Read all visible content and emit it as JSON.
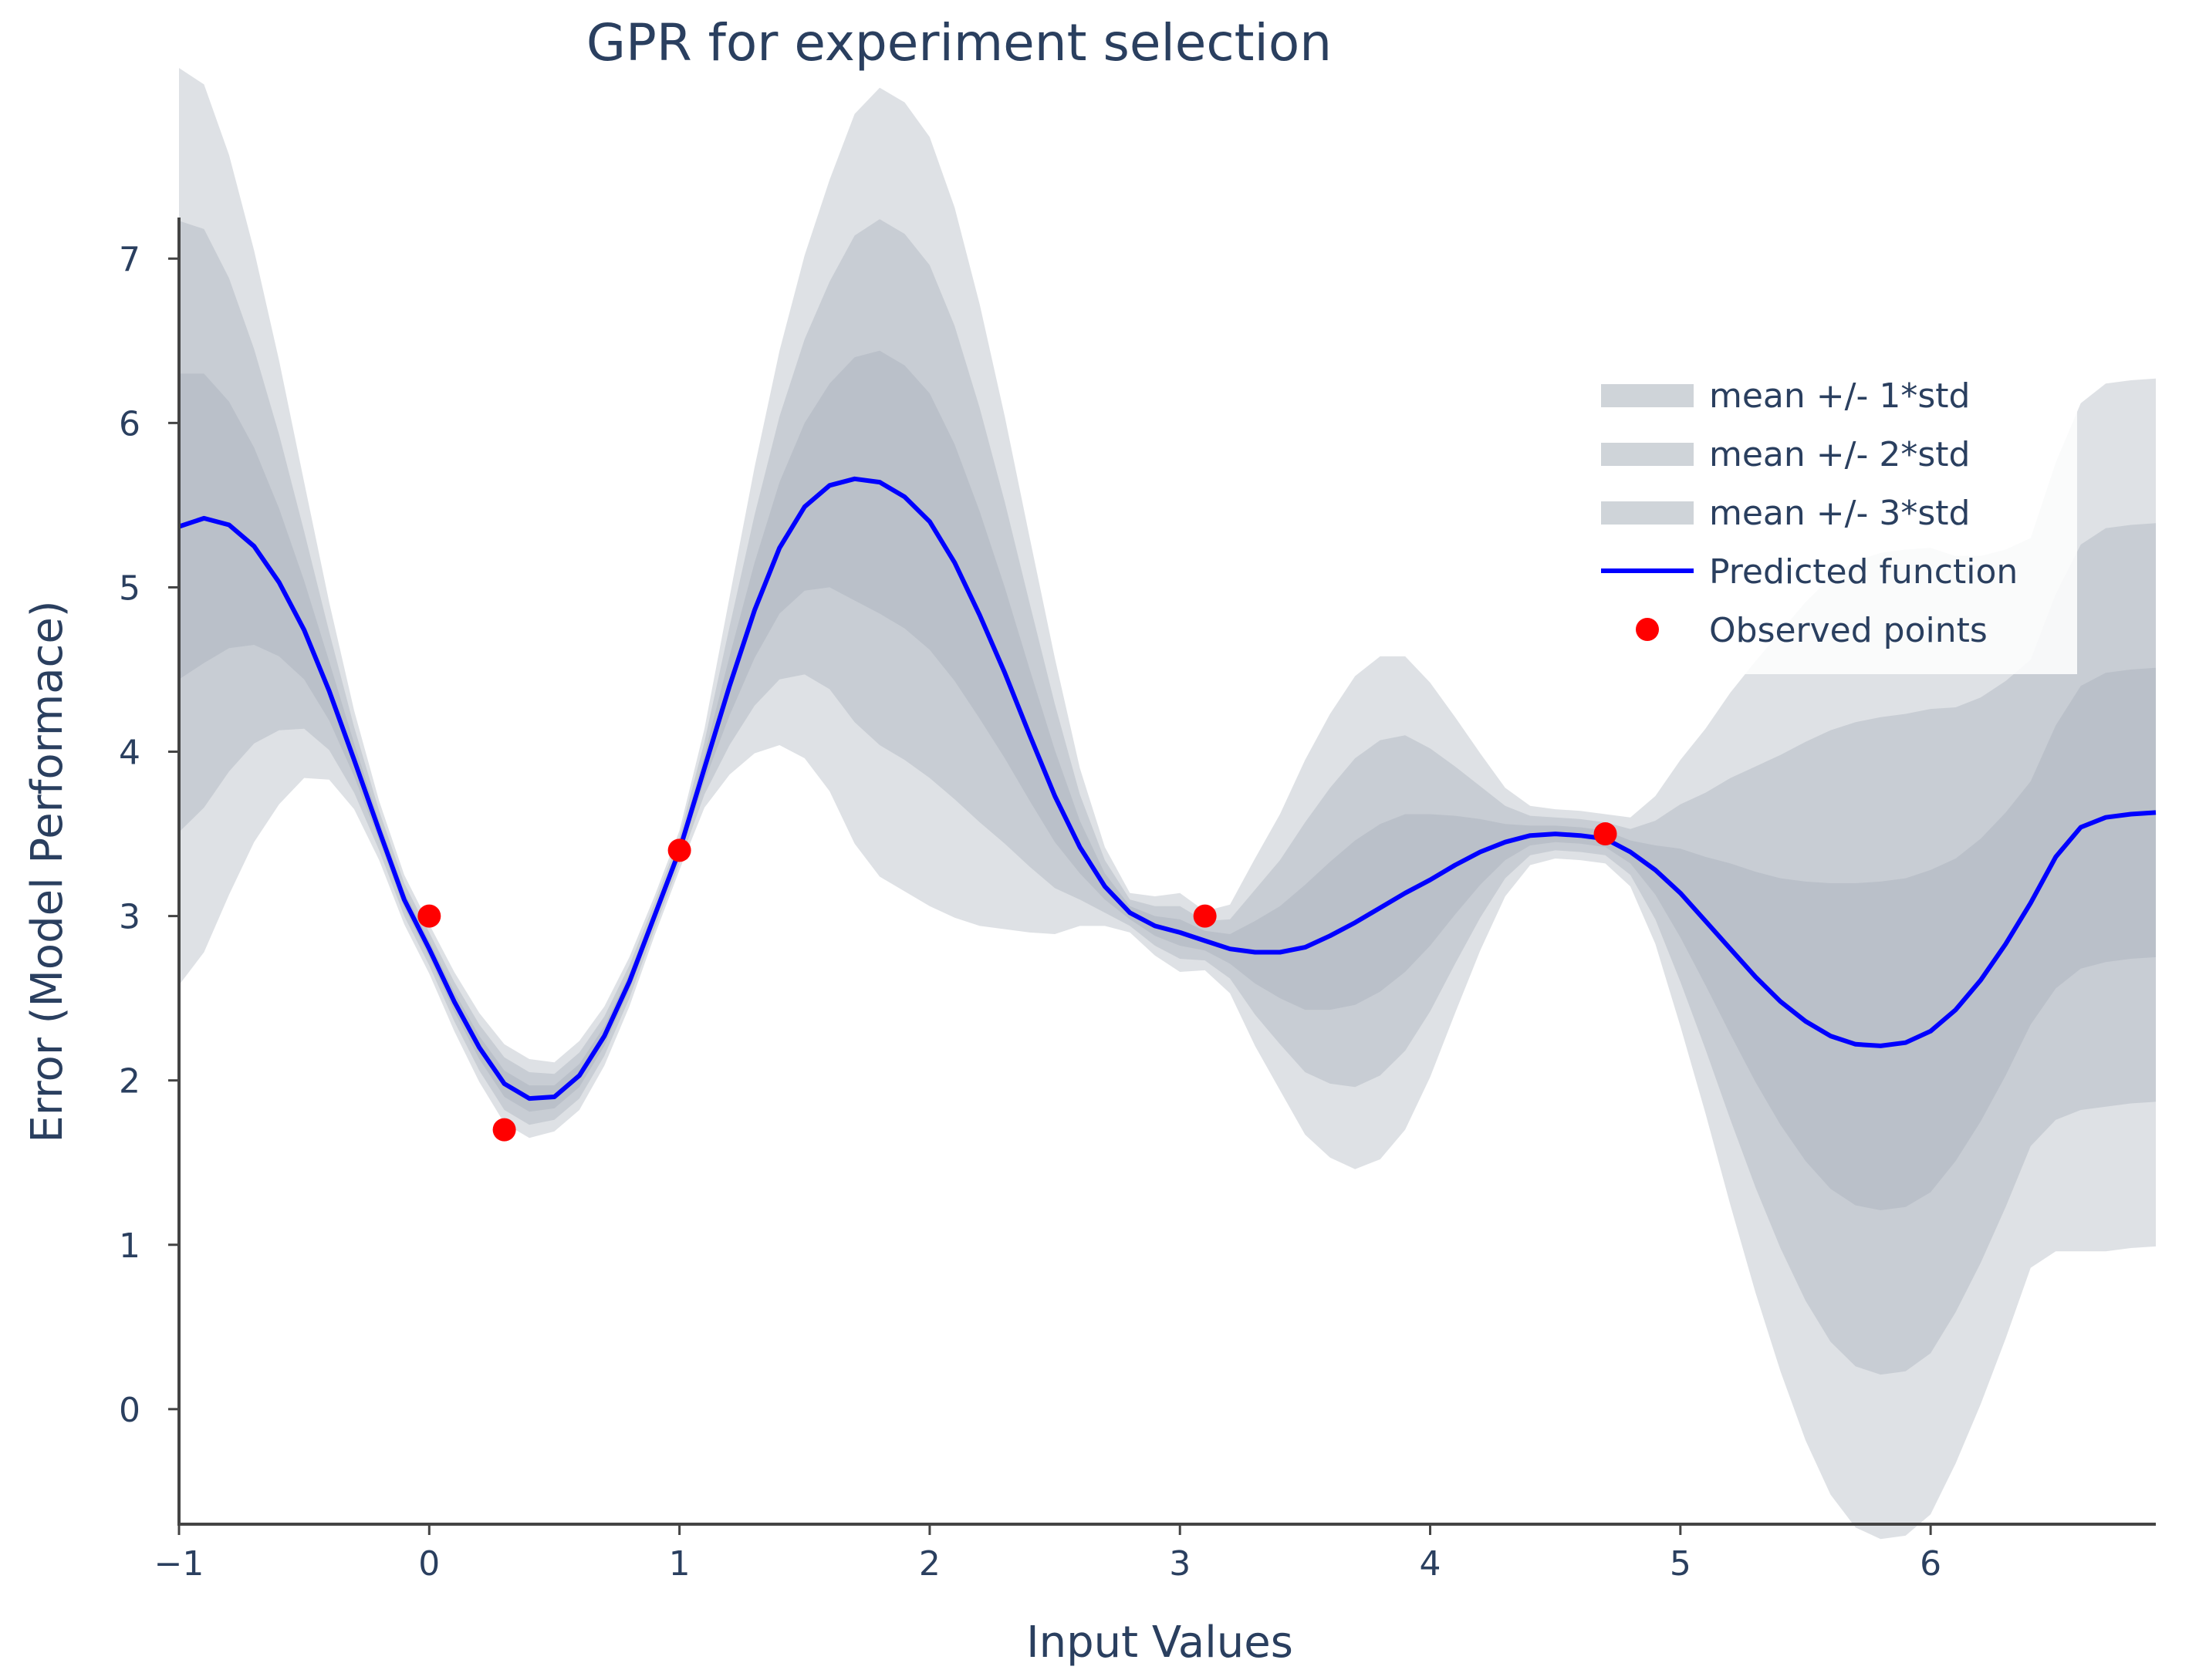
{
  "chart_data": {
    "type": "line",
    "title": "GPR for experiment selection",
    "xlabel": "Input Values",
    "ylabel": "Error (Model Performace)",
    "xlim": [
      -1,
      6.9
    ],
    "ylim": [
      -0.7,
      7.25
    ],
    "xticks": [
      -1,
      0,
      1,
      2,
      3,
      4,
      5,
      6
    ],
    "xtick_labels": [
      "−1",
      "0",
      "1",
      "2",
      "3",
      "4",
      "5",
      "6"
    ],
    "yticks": [
      0,
      1,
      2,
      3,
      4,
      5,
      6,
      7
    ],
    "ytick_labels": [
      "0",
      "1",
      "2",
      "3",
      "4",
      "5",
      "6",
      "7"
    ],
    "grid": false,
    "legend_position": "top-right",
    "legend": [
      {
        "label": "mean +/- 1*std",
        "kind": "band"
      },
      {
        "label": "mean +/- 2*std",
        "kind": "band"
      },
      {
        "label": "mean +/- 3*std",
        "kind": "band"
      },
      {
        "label": "Predicted function",
        "kind": "line"
      },
      {
        "label": "Observed points",
        "kind": "marker"
      }
    ],
    "colors": {
      "band": "#a0aab4",
      "line": "#0000ff",
      "points": "#ff0000",
      "text": "#2a3f5f",
      "axis": "#444444"
    },
    "predicted_function": {
      "name": "Predicted function",
      "x": [
        -1.0,
        -0.9,
        -0.8,
        -0.7,
        -0.6,
        -0.5,
        -0.4,
        -0.3,
        -0.2,
        -0.1,
        0.0,
        0.1,
        0.2,
        0.3,
        0.4,
        0.5,
        0.6,
        0.7,
        0.8,
        0.9,
        1.0,
        1.1,
        1.2,
        1.3,
        1.4,
        1.5,
        1.6,
        1.7,
        1.8,
        1.9,
        2.0,
        2.1,
        2.2,
        2.3,
        2.4,
        2.5,
        2.6,
        2.7,
        2.8,
        2.9,
        3.0,
        3.1,
        3.2,
        3.3,
        3.4,
        3.5,
        3.6,
        3.7,
        3.8,
        3.9,
        4.0,
        4.1,
        4.2,
        4.3,
        4.4,
        4.5,
        4.6,
        4.7,
        4.8,
        4.9,
        5.0,
        5.1,
        5.2,
        5.3,
        5.4,
        5.5,
        5.6,
        5.7,
        5.8,
        5.9,
        6.0,
        6.1,
        6.2,
        6.3,
        6.4,
        6.5,
        6.6,
        6.7,
        6.8,
        6.9
      ],
      "y": [
        5.37,
        5.42,
        5.38,
        5.25,
        5.03,
        4.74,
        4.37,
        3.95,
        3.52,
        3.1,
        2.8,
        2.48,
        2.2,
        1.98,
        1.89,
        1.9,
        2.03,
        2.27,
        2.6,
        3.0,
        3.4,
        3.9,
        4.4,
        4.86,
        5.24,
        5.49,
        5.62,
        5.66,
        5.64,
        5.55,
        5.4,
        5.15,
        4.83,
        4.48,
        4.1,
        3.73,
        3.42,
        3.18,
        3.02,
        2.94,
        2.9,
        2.85,
        2.8,
        2.78,
        2.78,
        2.81,
        2.88,
        2.96,
        3.05,
        3.14,
        3.22,
        3.31,
        3.39,
        3.45,
        3.49,
        3.5,
        3.49,
        3.47,
        3.39,
        3.28,
        3.14,
        2.97,
        2.8,
        2.63,
        2.48,
        2.36,
        2.27,
        2.22,
        2.21,
        2.23,
        2.3,
        2.43,
        2.61,
        2.83,
        3.08,
        3.36,
        3.54,
        3.6,
        3.62,
        3.63
      ]
    },
    "std": [
      0.93,
      0.88,
      0.75,
      0.6,
      0.45,
      0.3,
      0.18,
      0.1,
      0.06,
      0.05,
      0.05,
      0.06,
      0.07,
      0.08,
      0.08,
      0.07,
      0.07,
      0.06,
      0.05,
      0.04,
      0.04,
      0.08,
      0.18,
      0.29,
      0.4,
      0.51,
      0.62,
      0.74,
      0.8,
      0.8,
      0.78,
      0.72,
      0.63,
      0.52,
      0.4,
      0.28,
      0.16,
      0.08,
      0.04,
      0.06,
      0.08,
      0.06,
      0.09,
      0.19,
      0.28,
      0.38,
      0.45,
      0.5,
      0.51,
      0.48,
      0.4,
      0.3,
      0.2,
      0.11,
      0.06,
      0.05,
      0.05,
      0.05,
      0.07,
      0.15,
      0.27,
      0.39,
      0.52,
      0.64,
      0.75,
      0.85,
      0.93,
      0.98,
      1.0,
      1.0,
      0.98,
      0.92,
      0.86,
      0.8,
      0.74,
      0.8,
      0.86,
      0.88,
      0.88,
      0.88
    ],
    "observed_points": {
      "name": "Observed points",
      "x": [
        0.0,
        0.3,
        1.0,
        3.1,
        4.7
      ],
      "y": [
        3.0,
        1.7,
        3.4,
        3.0,
        3.5
      ]
    }
  }
}
